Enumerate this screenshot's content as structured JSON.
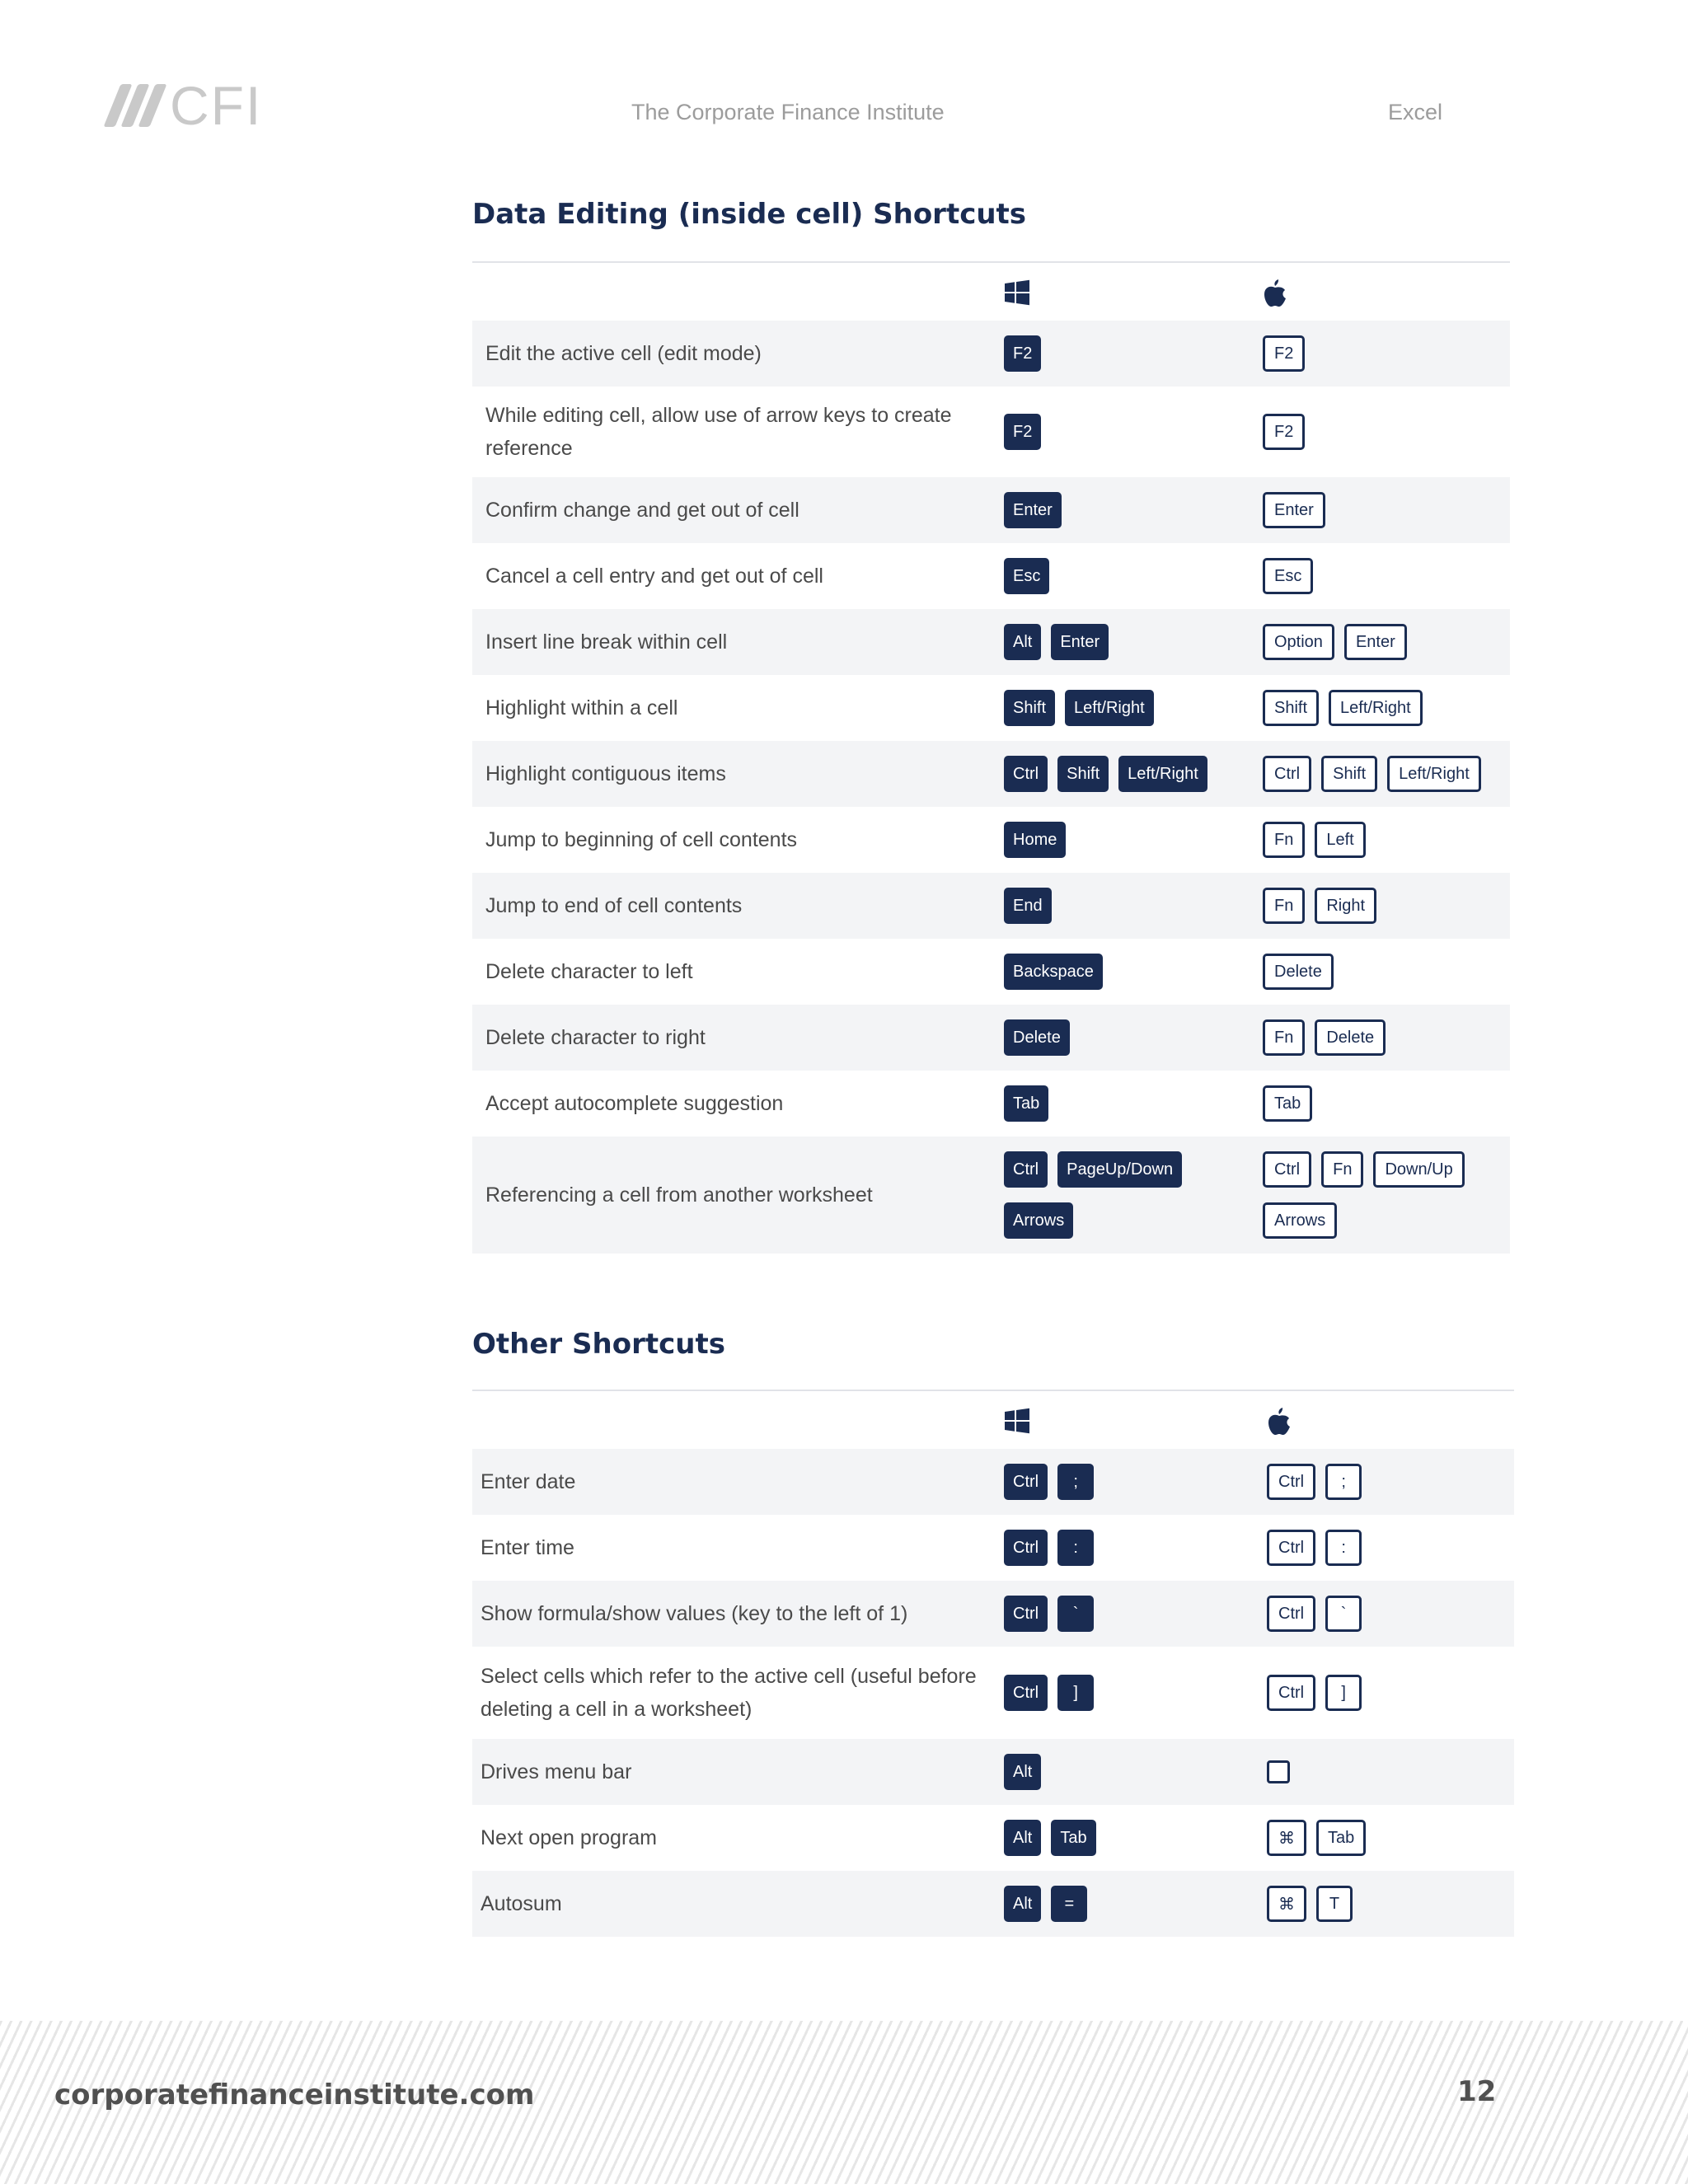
{
  "header": {
    "logo_text": "CFI",
    "center": "The Corporate Finance Institute",
    "right": "Excel"
  },
  "sections": [
    {
      "title": "Data Editing (inside cell) Shortcuts",
      "os_icons": [
        "windows-icon",
        "apple-icon"
      ],
      "rows": [
        {
          "desc": "Edit the active cell (edit mode)",
          "win": [
            [
              "F2"
            ]
          ],
          "mac": [
            [
              "F2"
            ]
          ]
        },
        {
          "desc": "While editing cell, allow use of arrow keys to create reference",
          "win": [
            [
              "F2"
            ]
          ],
          "mac": [
            [
              "F2"
            ]
          ]
        },
        {
          "desc": "Confirm change and get out of cell",
          "win": [
            [
              "Enter"
            ]
          ],
          "mac": [
            [
              "Enter"
            ]
          ]
        },
        {
          "desc": "Cancel a cell entry and get out of cell",
          "win": [
            [
              "Esc"
            ]
          ],
          "mac": [
            [
              "Esc"
            ]
          ]
        },
        {
          "desc": "Insert line break within cell",
          "win": [
            [
              "Alt",
              "Enter"
            ]
          ],
          "mac": [
            [
              "Option",
              "Enter"
            ]
          ]
        },
        {
          "desc": "Highlight within a cell",
          "win": [
            [
              "Shift",
              "Left/Right"
            ]
          ],
          "mac": [
            [
              "Shift",
              "Left/Right"
            ]
          ]
        },
        {
          "desc": "Highlight contiguous items",
          "win": [
            [
              "Ctrl",
              "Shift",
              "Left/Right"
            ]
          ],
          "mac": [
            [
              "Ctrl",
              "Shift",
              "Left/Right"
            ]
          ]
        },
        {
          "desc": "Jump to beginning of cell contents",
          "win": [
            [
              "Home"
            ]
          ],
          "mac": [
            [
              "Fn",
              "Left"
            ]
          ]
        },
        {
          "desc": "Jump to end of cell contents",
          "win": [
            [
              "End"
            ]
          ],
          "mac": [
            [
              "Fn",
              "Right"
            ]
          ]
        },
        {
          "desc": "Delete character to left",
          "win": [
            [
              "Backspace"
            ]
          ],
          "mac": [
            [
              "Delete"
            ]
          ]
        },
        {
          "desc": "Delete character to right",
          "win": [
            [
              "Delete"
            ]
          ],
          "mac": [
            [
              "Fn",
              "Delete"
            ]
          ]
        },
        {
          "desc": "Accept autocomplete suggestion",
          "win": [
            [
              "Tab"
            ]
          ],
          "mac": [
            [
              "Tab"
            ]
          ]
        },
        {
          "desc": "Referencing a cell from another worksheet",
          "win": [
            [
              "Ctrl",
              "PageUp/Down"
            ],
            [
              "Arrows"
            ]
          ],
          "mac": [
            [
              "Ctrl",
              "Fn",
              "Down/Up"
            ],
            [
              "Arrows"
            ]
          ]
        }
      ]
    },
    {
      "title": "Other Shortcuts",
      "os_icons": [
        "windows-icon",
        "apple-icon"
      ],
      "rows": [
        {
          "desc": "Enter date",
          "win": [
            [
              "Ctrl",
              ";"
            ]
          ],
          "mac": [
            [
              "Ctrl",
              ";"
            ]
          ]
        },
        {
          "desc": "Enter time",
          "win": [
            [
              "Ctrl",
              ":"
            ]
          ],
          "mac": [
            [
              "Ctrl",
              ":"
            ]
          ]
        },
        {
          "desc": "Show formula/show values (key to the left of 1)",
          "win": [
            [
              "Ctrl",
              "`"
            ]
          ],
          "mac": [
            [
              "Ctrl",
              "`"
            ]
          ]
        },
        {
          "desc": "Select cells which refer to the active cell (useful before deleting a cell in a worksheet)",
          "win": [
            [
              "Ctrl",
              "]"
            ]
          ],
          "mac": [
            [
              "Ctrl",
              "]"
            ]
          ]
        },
        {
          "desc": "Drives menu bar",
          "win": [
            [
              "Alt"
            ]
          ],
          "mac": [
            [
              ""
            ]
          ]
        },
        {
          "desc": "Next open program",
          "win": [
            [
              "Alt",
              "Tab"
            ]
          ],
          "mac": [
            [
              "⌘",
              "Tab"
            ]
          ]
        },
        {
          "desc": "Autosum",
          "win": [
            [
              "Alt",
              "="
            ]
          ],
          "mac": [
            [
              "⌘",
              "T"
            ]
          ]
        }
      ]
    }
  ],
  "footer": {
    "url": "corporatefinanceinstitute.com",
    "page": "12"
  }
}
